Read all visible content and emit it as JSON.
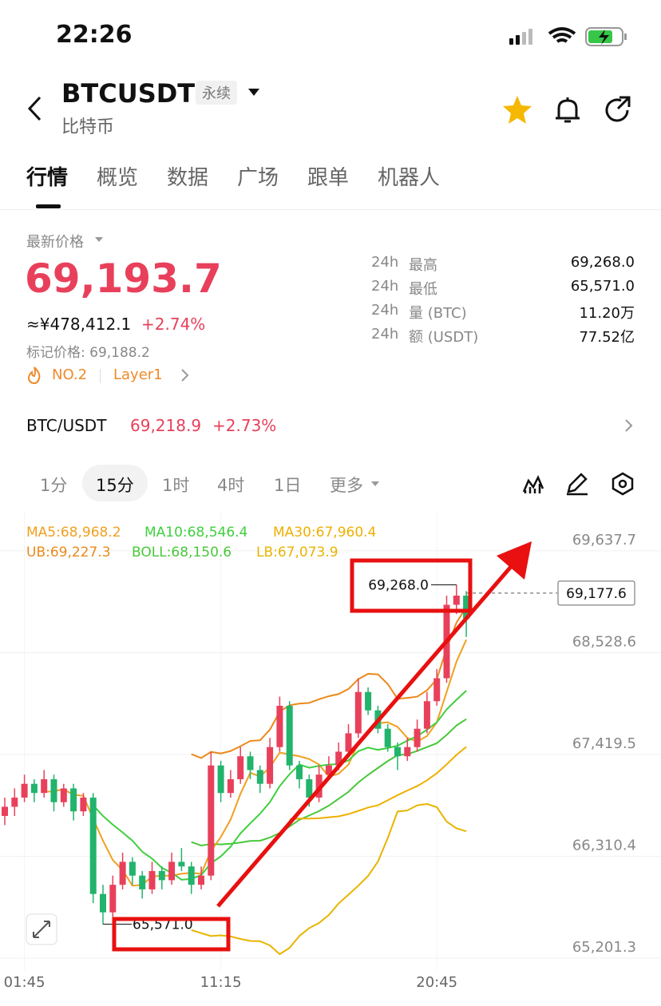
{
  "status": {
    "time": "22:26"
  },
  "header": {
    "symbol": "BTCUSDT",
    "tag": "永续",
    "subtitle": "比特币"
  },
  "tabs": [
    "行情",
    "概览",
    "数据",
    "广场",
    "跟单",
    "机器人"
  ],
  "price": {
    "label": "最新价格",
    "last": "69,193.7",
    "cny": "≈¥478,412.1",
    "change": "+2.74%",
    "mark": "标记价格: 69,188.2",
    "rank": "NO.2",
    "sector": "Layer1"
  },
  "stats": [
    [
      "24h",
      "最高",
      "69,268.0"
    ],
    [
      "24h",
      "最低",
      "65,571.0"
    ],
    [
      "24h",
      "量 (BTC)",
      "11.20万"
    ],
    [
      "24h",
      "额 (USDT)",
      "77.52亿"
    ]
  ],
  "spot": {
    "pair": "BTC/USDT",
    "price": "69,218.9",
    "change": "+2.73%"
  },
  "intervals": [
    "1分",
    "15分",
    "1时",
    "4时",
    "1日",
    "更多"
  ],
  "chart_data": {
    "type": "candlestick",
    "indicators": [
      [
        {
          "text": "MA5:68,968.2",
          "color": "#f0a020"
        },
        {
          "text": "MA10:68,546.4",
          "color": "#3fcf3f"
        },
        {
          "text": "MA30:67,960.4",
          "color": "#eeb000"
        }
      ],
      [
        {
          "text": "UB:69,227.3",
          "color": "#ea8a1a"
        },
        {
          "text": "BOLL:68,150.6",
          "color": "#48c83a"
        },
        {
          "text": "LB:67,073.9",
          "color": "#e8b400"
        }
      ]
    ],
    "up_color": "#e8405b",
    "down_color": "#22b36c",
    "ylim": [
      65071,
      69985
    ],
    "yticks": [
      {
        "value": 65201.3,
        "label": "65,201.3"
      },
      {
        "value": 66310.4,
        "label": "66,310.4"
      },
      {
        "value": 67419.5,
        "label": "67,419.5"
      },
      {
        "value": 68528.6,
        "label": "68,528.6"
      },
      {
        "value": 69637.7,
        "label": "69,637.7"
      }
    ],
    "categories": [
      null,
      null,
      "01:45",
      null,
      null,
      null,
      null,
      null,
      null,
      null,
      null,
      null,
      null,
      null,
      null,
      null,
      null,
      null,
      null,
      null,
      null,
      null,
      "11:15",
      null,
      null,
      null,
      null,
      null,
      null,
      null,
      null,
      null,
      null,
      null,
      null,
      null,
      null,
      null,
      null,
      null,
      null,
      null,
      null,
      null,
      "20:45",
      null,
      null,
      null
    ],
    "candles": [
      [
        66750,
        66950,
        66650,
        66850
      ],
      [
        66850,
        67050,
        66750,
        66950
      ],
      [
        66950,
        67200,
        66900,
        67100
      ],
      [
        67100,
        67150,
        66900,
        67000
      ],
      [
        67000,
        67250,
        66950,
        67150
      ],
      [
        67150,
        67200,
        66800,
        66900
      ],
      [
        66900,
        67100,
        66850,
        67050
      ],
      [
        67050,
        67100,
        66700,
        66800
      ],
      [
        66800,
        67000,
        66750,
        66950
      ],
      [
        66950,
        67000,
        65800,
        65900
      ],
      [
        65900,
        66000,
        65571,
        65700
      ],
      [
        65700,
        66100,
        65650,
        66000
      ],
      [
        66000,
        66350,
        65950,
        66250
      ],
      [
        66250,
        66300,
        66000,
        66100
      ],
      [
        66100,
        66150,
        65850,
        65950
      ],
      [
        65950,
        66250,
        65900,
        66150
      ],
      [
        66150,
        66200,
        65950,
        66050
      ],
      [
        66050,
        66350,
        66000,
        66250
      ],
      [
        66250,
        66400,
        66150,
        66200
      ],
      [
        66200,
        66250,
        65900,
        66000
      ],
      [
        66000,
        66200,
        65950,
        66100
      ],
      [
        66100,
        67450,
        66050,
        67300
      ],
      [
        67300,
        67350,
        66900,
        67000
      ],
      [
        67000,
        67250,
        66950,
        67150
      ],
      [
        67150,
        67500,
        67100,
        67400
      ],
      [
        67400,
        67450,
        67150,
        67250
      ],
      [
        67250,
        67300,
        67000,
        67100
      ],
      [
        67100,
        67600,
        67050,
        67500
      ],
      [
        67500,
        68050,
        67450,
        67950
      ],
      [
        67950,
        68000,
        67250,
        67300
      ],
      [
        67300,
        67350,
        67050,
        67150
      ],
      [
        67150,
        67200,
        66850,
        66950
      ],
      [
        66950,
        67300,
        66900,
        67200
      ],
      [
        67200,
        67400,
        67150,
        67300
      ],
      [
        67300,
        67550,
        67250,
        67450
      ],
      [
        67450,
        67750,
        67400,
        67650
      ],
      [
        67650,
        68250,
        67600,
        68100
      ],
      [
        68100,
        68150,
        67850,
        67900
      ],
      [
        67900,
        67950,
        67650,
        67700
      ],
      [
        67700,
        67750,
        67450,
        67500
      ],
      [
        67500,
        67550,
        67250,
        67400
      ],
      [
        67400,
        67600,
        67350,
        67500
      ],
      [
        67500,
        67800,
        67450,
        67700
      ],
      [
        67700,
        68100,
        67650,
        68000
      ],
      [
        68000,
        68350,
        67950,
        68250
      ],
      [
        68250,
        69150,
        68200,
        69050
      ],
      [
        69050,
        69268,
        68950,
        69150
      ],
      [
        69150,
        69200,
        68700,
        68900
      ]
    ],
    "high_label": {
      "value": 69268,
      "label": "69,268.0"
    },
    "low_label": {
      "value": 65571,
      "label": "65,571.0"
    },
    "current": {
      "value": 69177.6,
      "label": "69,177.6"
    }
  }
}
